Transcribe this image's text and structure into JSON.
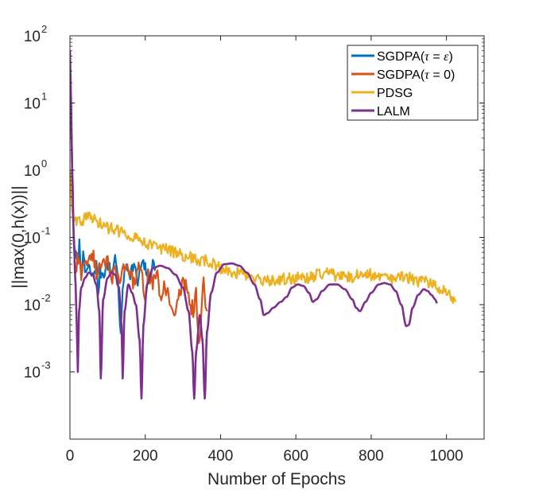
{
  "chart_data": {
    "type": "line",
    "title": "",
    "xlabel": "Number of Epochs",
    "ylabel": "||max(0,h(x))||",
    "xlim": [
      0,
      1100
    ],
    "ylim": [
      0.0001,
      100
    ],
    "yscale": "log",
    "xticks": [
      0,
      200,
      400,
      600,
      800,
      1000
    ],
    "xtick_labels": [
      "0",
      "200",
      "400",
      "600",
      "800",
      "1000"
    ],
    "yticks": [
      0.001,
      0.01,
      0.1,
      1,
      10,
      100
    ],
    "ytick_labels": [
      {
        "base": "10",
        "exp": "-3"
      },
      {
        "base": "10",
        "exp": "-2"
      },
      {
        "base": "10",
        "exp": "-1"
      },
      {
        "base": "10",
        "exp": "0"
      },
      {
        "base": "10",
        "exp": "1"
      },
      {
        "base": "10",
        "exp": "2"
      }
    ],
    "legend_position": "top-right",
    "grid": false,
    "series": [
      {
        "name": "SGDPA(τ = ε)",
        "legend": {
          "prefix": "SGDPA(",
          "tau": "τ",
          "eq": " = ",
          "val": "ε",
          "suffix": ")"
        },
        "color": "#0072BD",
        "noise": 0.1,
        "points": [
          [
            0,
            55
          ],
          [
            3,
            8
          ],
          [
            7,
            0.6
          ],
          [
            10,
            0.12
          ],
          [
            13,
            0.06
          ],
          [
            20,
            0.04
          ],
          [
            25,
            0.08
          ],
          [
            30,
            0.03
          ],
          [
            35,
            0.05
          ],
          [
            40,
            0.03
          ],
          [
            50,
            0.035
          ],
          [
            60,
            0.025
          ],
          [
            70,
            0.04
          ],
          [
            75,
            0.015
          ],
          [
            80,
            0.03
          ],
          [
            90,
            0.03
          ],
          [
            100,
            0.04
          ],
          [
            110,
            0.03
          ],
          [
            120,
            0.05
          ],
          [
            125,
            0.04
          ],
          [
            130,
            0.01
          ],
          [
            135,
            0.003
          ],
          [
            140,
            0.02
          ],
          [
            150,
            0.04
          ],
          [
            160,
            0.03
          ],
          [
            170,
            0.04
          ],
          [
            180,
            0.02
          ],
          [
            190,
            0.04
          ],
          [
            200,
            0.035
          ],
          [
            210,
            0.025
          ],
          [
            220,
            0.04
          ],
          [
            230,
            0.035
          ]
        ]
      },
      {
        "name": "SGDPA(τ = 0)",
        "legend": {
          "prefix": "SGDPA(",
          "tau": "τ",
          "eq": " = ",
          "val": "0",
          "suffix": ")"
        },
        "color": "#D95319",
        "noise": 0.13,
        "points": [
          [
            0,
            40
          ],
          [
            3,
            5
          ],
          [
            7,
            0.4
          ],
          [
            10,
            0.1
          ],
          [
            15,
            0.025
          ],
          [
            20,
            0.05
          ],
          [
            30,
            0.03
          ],
          [
            40,
            0.05
          ],
          [
            50,
            0.04
          ],
          [
            60,
            0.06
          ],
          [
            70,
            0.03
          ],
          [
            80,
            0.04
          ],
          [
            90,
            0.05
          ],
          [
            100,
            0.04
          ],
          [
            110,
            0.02
          ],
          [
            120,
            0.035
          ],
          [
            130,
            0.02
          ],
          [
            140,
            0.03
          ],
          [
            150,
            0.04
          ],
          [
            160,
            0.03
          ],
          [
            170,
            0.02
          ],
          [
            180,
            0.035
          ],
          [
            190,
            0.025
          ],
          [
            200,
            0.015
          ],
          [
            210,
            0.03
          ],
          [
            220,
            0.02
          ],
          [
            230,
            0.035
          ],
          [
            240,
            0.01
          ],
          [
            250,
            0.02
          ],
          [
            260,
            0.015
          ],
          [
            270,
            0.01
          ],
          [
            280,
            0.006
          ],
          [
            290,
            0.015
          ],
          [
            300,
            0.02
          ],
          [
            310,
            0.02
          ],
          [
            320,
            0.01
          ],
          [
            330,
            0.008
          ],
          [
            335,
            0.015
          ],
          [
            340,
            0.005
          ],
          [
            345,
            0.0025
          ],
          [
            350,
            0.01
          ],
          [
            355,
            0.02
          ],
          [
            360,
            0.01
          ],
          [
            365,
            0.008
          ]
        ]
      },
      {
        "name": "PDSG",
        "legend": {
          "prefix": "PDSG",
          "tau": "",
          "eq": "",
          "val": "",
          "suffix": ""
        },
        "color": "#EDB120",
        "noise": 0.09,
        "points": [
          [
            0,
            1
          ],
          [
            3,
            0.5
          ],
          [
            6,
            0.25
          ],
          [
            10,
            0.19
          ],
          [
            30,
            0.18
          ],
          [
            50,
            0.2
          ],
          [
            60,
            0.19
          ],
          [
            80,
            0.16
          ],
          [
            100,
            0.14
          ],
          [
            120,
            0.13
          ],
          [
            140,
            0.12
          ],
          [
            160,
            0.11
          ],
          [
            180,
            0.1
          ],
          [
            200,
            0.085
          ],
          [
            220,
            0.075
          ],
          [
            240,
            0.07
          ],
          [
            260,
            0.065
          ],
          [
            280,
            0.06
          ],
          [
            300,
            0.055
          ],
          [
            320,
            0.05
          ],
          [
            340,
            0.045
          ],
          [
            360,
            0.045
          ],
          [
            380,
            0.04
          ],
          [
            400,
            0.035
          ],
          [
            420,
            0.033
          ],
          [
            440,
            0.03
          ],
          [
            460,
            0.028
          ],
          [
            480,
            0.025
          ],
          [
            500,
            0.023
          ],
          [
            520,
            0.022
          ],
          [
            540,
            0.022
          ],
          [
            560,
            0.024
          ],
          [
            580,
            0.024
          ],
          [
            600,
            0.025
          ],
          [
            620,
            0.024
          ],
          [
            640,
            0.026
          ],
          [
            660,
            0.028
          ],
          [
            680,
            0.03
          ],
          [
            700,
            0.028
          ],
          [
            720,
            0.026
          ],
          [
            740,
            0.025
          ],
          [
            760,
            0.028
          ],
          [
            780,
            0.03
          ],
          [
            800,
            0.028
          ],
          [
            820,
            0.026
          ],
          [
            840,
            0.025
          ],
          [
            860,
            0.024
          ],
          [
            880,
            0.026
          ],
          [
            900,
            0.025
          ],
          [
            920,
            0.023
          ],
          [
            940,
            0.022
          ],
          [
            960,
            0.02
          ],
          [
            980,
            0.018
          ],
          [
            1000,
            0.017
          ],
          [
            1010,
            0.014
          ],
          [
            1020,
            0.012
          ],
          [
            1025,
            0.011
          ]
        ]
      },
      {
        "name": "LALM",
        "legend": {
          "prefix": "LALM",
          "tau": "",
          "eq": "",
          "val": "",
          "suffix": ""
        },
        "color": "#7E2F8E",
        "noise": 0,
        "points": [
          [
            0,
            60
          ],
          [
            3,
            10
          ],
          [
            6,
            1
          ],
          [
            10,
            0.1
          ],
          [
            15,
            0.02
          ],
          [
            18,
            0.005
          ],
          [
            21,
            0.001
          ],
          [
            24,
            0.008
          ],
          [
            30,
            0.018
          ],
          [
            40,
            0.025
          ],
          [
            50,
            0.03
          ],
          [
            60,
            0.028
          ],
          [
            70,
            0.02
          ],
          [
            78,
            0.008
          ],
          [
            82,
            0.0008
          ],
          [
            88,
            0.012
          ],
          [
            100,
            0.025
          ],
          [
            110,
            0.03
          ],
          [
            120,
            0.028
          ],
          [
            130,
            0.018
          ],
          [
            137,
            0.005
          ],
          [
            140,
            0.0008
          ],
          [
            145,
            0.008
          ],
          [
            155,
            0.02
          ],
          [
            165,
            0.015
          ],
          [
            175,
            0.01
          ],
          [
            185,
            0.003
          ],
          [
            190,
            0.0004
          ],
          [
            195,
            0.005
          ],
          [
            205,
            0.02
          ],
          [
            220,
            0.035
          ],
          [
            240,
            0.038
          ],
          [
            260,
            0.035
          ],
          [
            280,
            0.028
          ],
          [
            300,
            0.018
          ],
          [
            315,
            0.008
          ],
          [
            325,
            0.002
          ],
          [
            330,
            0.0004
          ],
          [
            335,
            0.002
          ],
          [
            345,
            0.007
          ],
          [
            352,
            0.003
          ],
          [
            358,
            0.0004
          ],
          [
            364,
            0.004
          ],
          [
            375,
            0.015
          ],
          [
            390,
            0.03
          ],
          [
            410,
            0.04
          ],
          [
            430,
            0.041
          ],
          [
            450,
            0.038
          ],
          [
            470,
            0.03
          ],
          [
            490,
            0.02
          ],
          [
            505,
            0.012
          ],
          [
            515,
            0.007
          ],
          [
            525,
            0.0075
          ],
          [
            540,
            0.009
          ],
          [
            560,
            0.011
          ],
          [
            575,
            0.013
          ],
          [
            590,
            0.018
          ],
          [
            605,
            0.02
          ],
          [
            620,
            0.019
          ],
          [
            635,
            0.015
          ],
          [
            645,
            0.011
          ],
          [
            655,
            0.012
          ],
          [
            670,
            0.016
          ],
          [
            690,
            0.02
          ],
          [
            710,
            0.02
          ],
          [
            730,
            0.017
          ],
          [
            750,
            0.012
          ],
          [
            760,
            0.009
          ],
          [
            770,
            0.008
          ],
          [
            785,
            0.011
          ],
          [
            800,
            0.015
          ],
          [
            820,
            0.02
          ],
          [
            835,
            0.021
          ],
          [
            850,
            0.02
          ],
          [
            865,
            0.016
          ],
          [
            880,
            0.01
          ],
          [
            893,
            0.0048
          ],
          [
            900,
            0.005
          ],
          [
            910,
            0.009
          ],
          [
            925,
            0.014
          ],
          [
            940,
            0.017
          ],
          [
            950,
            0.016
          ],
          [
            960,
            0.014
          ],
          [
            970,
            0.012
          ],
          [
            975,
            0.0105
          ]
        ]
      }
    ]
  }
}
